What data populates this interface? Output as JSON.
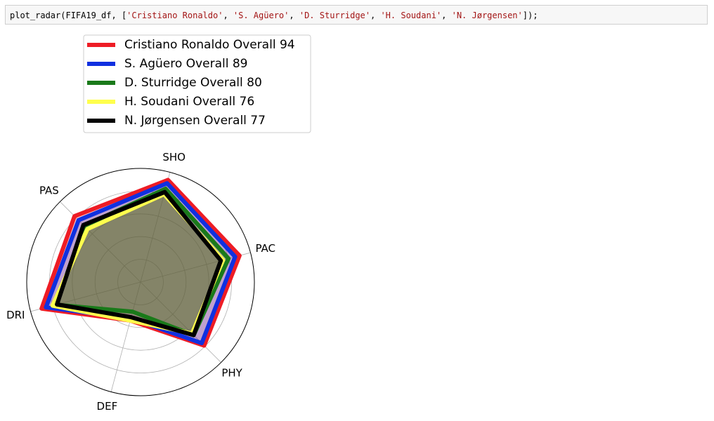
{
  "code": {
    "func": "plot_radar(FIFA19_df, [",
    "args": [
      "'Cristiano Ronaldo'",
      "'S. Agüero'",
      "'D. Sturridge'",
      "'H. Soudani'",
      "'N. Jørgensen'"
    ],
    "sep": ", ",
    "close": "]);"
  },
  "chart_data": {
    "type": "radar",
    "axes": [
      "PAC",
      "SHO",
      "PAS",
      "DRI",
      "DEF",
      "PHY"
    ],
    "rlim": [
      0,
      100
    ],
    "grid": true,
    "legend_position": "top-left",
    "series": [
      {
        "name": "Cristiano Ronaldo Overall 94",
        "color": "#ee1c25",
        "values": [
          90,
          93,
          82,
          90,
          35,
          79
        ]
      },
      {
        "name": "S. Agüero Overall 89",
        "color": "#1030e0",
        "values": [
          86,
          90,
          77,
          86,
          33,
          76
        ]
      },
      {
        "name": "D. Sturridge Overall 80",
        "color": "#1a7a1a",
        "values": [
          80,
          85,
          70,
          77,
          27,
          66
        ]
      },
      {
        "name": "H. Soudani Overall 76",
        "color": "#ffff4d",
        "values": [
          75,
          80,
          66,
          80,
          35,
          64
        ]
      },
      {
        "name": "N. Jørgensen Overall 77",
        "color": "#000000",
        "values": [
          73,
          82,
          71,
          76,
          32,
          66
        ]
      }
    ]
  }
}
